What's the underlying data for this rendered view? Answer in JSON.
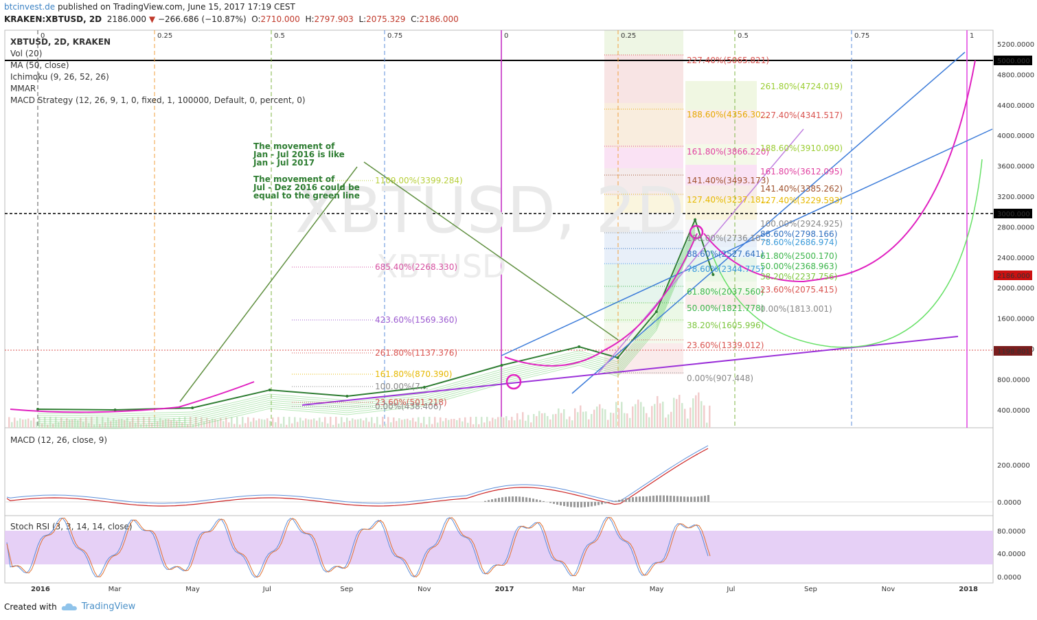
{
  "header": {
    "brand": "btcinvest.de",
    "published": " published on TradingView.com, June 15, 2017 17:19 CEST",
    "symbol": "KRAKEN:XBTUSD, 2D",
    "price": "2186.000",
    "change": "−266.686 (−10.87%)",
    "o_label": "O:",
    "o": "2710.000",
    "h_label": "H:",
    "h": "2797.903",
    "l_label": "L:",
    "l": "2075.329",
    "c_label": "C:",
    "c": "2186.000"
  },
  "indicators": [
    "XBTUSD, 2D, KRAKEN",
    "Vol (20)",
    "MA (50, close)",
    "Ichimoku (9, 26, 52, 26)",
    "MMAR",
    "MACD Strategy (12, 26, 9, 1, 0, fixed, 1, 100000, Default, 0, percent, 0)"
  ],
  "watermark": {
    "big": "XBTUSD, 2D",
    "small": "XBTUSD"
  },
  "annotation": [
    "The movement of",
    "Jan - Jul 2016 is like",
    "Jan - Jul 2017",
    "",
    "The movement of",
    "Jul - Dez 2016 could be",
    "equal to the green line"
  ],
  "time_axis": [
    "2016",
    "Mar",
    "May",
    "Jul",
    "Sep",
    "Nov",
    "2017",
    "Mar",
    "May",
    "Jul",
    "Sep",
    "Nov",
    "2018"
  ],
  "price_axis": [
    "5200.0000",
    "4800.0000",
    "4400.0000",
    "4000.0000",
    "3600.0000",
    "3200.0000",
    "2800.0000",
    "2400.0000",
    "2000.0000",
    "1600.0000",
    "1200.0000",
    "800.0000",
    "400.0000"
  ],
  "price_tags": {
    "top": "5000.000",
    "mid": "3000.000",
    "last": "2186.000",
    "low": "1198.801"
  },
  "macd": {
    "label": "MACD (12, 26, close, 9)",
    "ticks": [
      "200.0000",
      "0.0000"
    ]
  },
  "stoch": {
    "label": "Stoch RSI (3, 3, 14, 14, close)",
    "ticks": [
      "80.0000",
      "40.0000",
      "0.0000"
    ]
  },
  "fib_time_top": [
    "0",
    "0.25",
    "0.5",
    "0.75",
    "0",
    "0.25",
    "0.5",
    "0.75",
    "1"
  ],
  "fib_levels_left": [
    {
      "t": "1109.00%(3399.284)",
      "c": "#b7cf3a"
    },
    {
      "t": "685.40%(2268.330)",
      "c": "#d64fa0"
    },
    {
      "t": "423.60%(1569.360)",
      "c": "#9b59d0"
    },
    {
      "t": "261.80%(1137.376)",
      "c": "#d9534f"
    },
    {
      "t": "161.80%(870.390)",
      "c": "#e6b800"
    },
    {
      "t": "100.00%(7…",
      "c": "#888"
    },
    {
      "t": "23.60%(501.218)",
      "c": "#d9534f"
    },
    {
      "t": "0.00%(438.406)",
      "c": "#888"
    }
  ],
  "fib_levels_right1": [
    {
      "t": "227.40%(5065.821)",
      "c": "#d9534f"
    },
    {
      "t": "188.60%(4356.30…",
      "c": "#e6a800"
    },
    {
      "t": "161.80%(3866.220)",
      "c": "#e040a0"
    },
    {
      "t": "141.40%(3493.173)",
      "c": "#a0522d"
    },
    {
      "t": "127.40%(3237.18…",
      "c": "#e6b800"
    },
    {
      "t": "100.00%(2736.10…",
      "c": "#888"
    },
    {
      "t": "88.60%(2527.641)",
      "c": "#2f6fbf"
    },
    {
      "t": "78.60%(2344.775)",
      "c": "#3a9ad9"
    },
    {
      "t": "61.80%(2037.560)",
      "c": "#3bb54a"
    },
    {
      "t": "50.00%(1821.778)",
      "c": "#3bb54a"
    },
    {
      "t": "38.20%(1605.996)",
      "c": "#7cc63d"
    },
    {
      "t": "23.60%(1339.012)",
      "c": "#d9534f"
    },
    {
      "t": "0.00%(907.448)",
      "c": "#888"
    }
  ],
  "fib_levels_right2": [
    {
      "t": "261.80%(4724.019)",
      "c": "#9acd32"
    },
    {
      "t": "227.40%(4341.517)",
      "c": "#d9534f"
    },
    {
      "t": "188.60%(3910.090)",
      "c": "#9acd32"
    },
    {
      "t": "161.80%(3612.095)",
      "c": "#e040a0"
    },
    {
      "t": "141.40%(3385.262)",
      "c": "#a0522d"
    },
    {
      "t": "127.40%(3229.593)",
      "c": "#e6b800"
    },
    {
      "t": "100.00%(2924.925)",
      "c": "#888"
    },
    {
      "t": "88.60%(2798.166)",
      "c": "#2f6fbf"
    },
    {
      "t": "78.60%(2686.974)",
      "c": "#3a9ad9"
    },
    {
      "t": "61.80%(2500.170)",
      "c": "#3bb54a"
    },
    {
      "t": "50.00%(2368.963)",
      "c": "#3bb54a"
    },
    {
      "t": "38.20%(2237.756)",
      "c": "#7cc63d"
    },
    {
      "t": "23.60%(2075.415)",
      "c": "#d9534f"
    },
    {
      "t": "0.00%(1813.001)",
      "c": "#888"
    }
  ],
  "footer": {
    "created": "Created with",
    "tv": "TradingView"
  },
  "chart_data": {
    "type": "line",
    "title": "XBTUSD, 2D, KRAKEN",
    "x": [
      "2016-01",
      "2016-03",
      "2016-05",
      "2016-07",
      "2016-09",
      "2016-11",
      "2017-01",
      "2017-03",
      "2017-04",
      "2017-05",
      "2017-06",
      "2017-06-15"
    ],
    "series": [
      {
        "name": "XBTUSD",
        "values": [
          430,
          420,
          450,
          680,
          600,
          720,
          1000,
          1250,
          1100,
          1700,
          2900,
          2186
        ]
      }
    ],
    "ylim": [
      300,
      5300
    ]
  }
}
